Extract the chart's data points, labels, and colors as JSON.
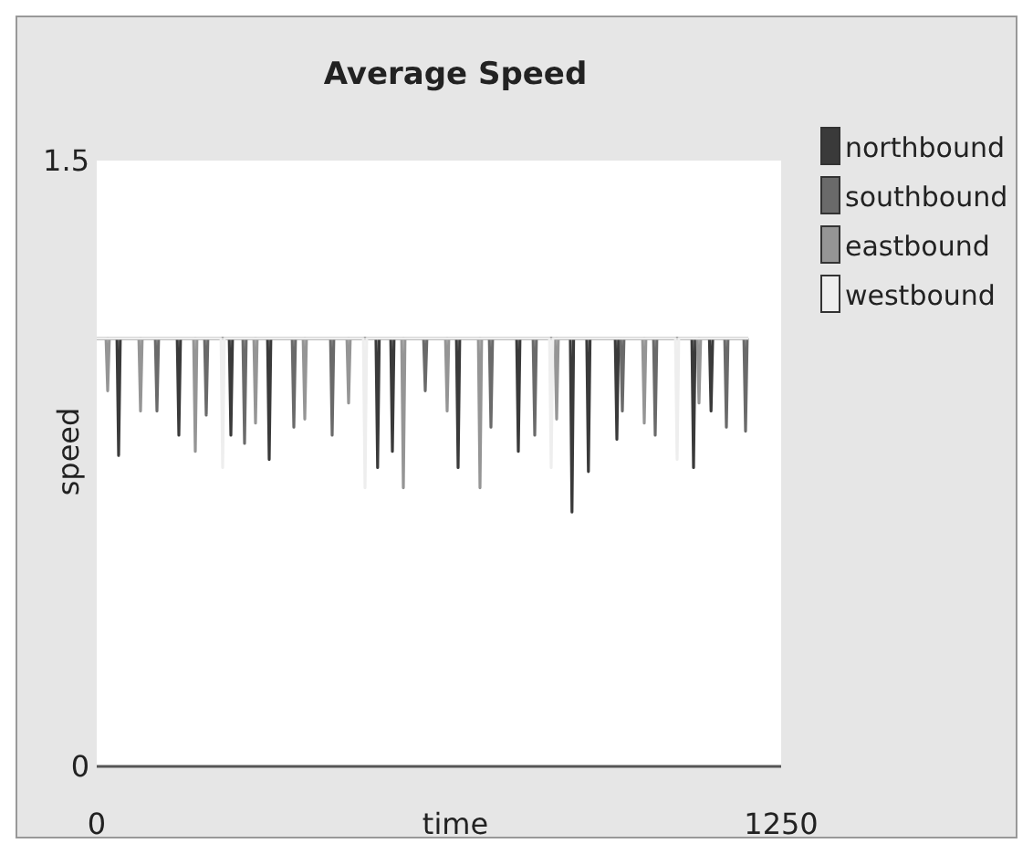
{
  "chart_data": {
    "type": "line",
    "title": "Average Speed",
    "xlabel": "time",
    "ylabel": "speed",
    "xlim": [
      0,
      1250
    ],
    "xticks": [
      0,
      1250
    ],
    "ylim": [
      0,
      1.5
    ],
    "yticks": [
      0,
      1.5
    ],
    "legend": "right",
    "grid": false,
    "marker": "none",
    "line_style": "solid",
    "series": [
      {
        "name": "northbound",
        "color": "#3a3a3a",
        "x": [
          0,
          37,
          40,
          43,
          147,
          150,
          153,
          242,
          245,
          248,
          312,
          315,
          318,
          510,
          513,
          516,
          537,
          540,
          543,
          657,
          660,
          663,
          767,
          770,
          773,
          865,
          868,
          871,
          895,
          898,
          901,
          947,
          950,
          953,
          1087,
          1090,
          1093,
          1119,
          1122,
          1125,
          1190
        ],
        "values": [
          1.06,
          1.06,
          0.77,
          1.06,
          1.06,
          0.82,
          1.06,
          1.06,
          0.82,
          1.06,
          1.06,
          0.76,
          1.06,
          1.06,
          0.74,
          1.06,
          1.06,
          0.78,
          1.06,
          1.06,
          0.74,
          1.06,
          1.06,
          0.78,
          1.06,
          1.06,
          0.63,
          1.06,
          1.06,
          0.73,
          1.06,
          1.06,
          0.81,
          1.06,
          1.06,
          0.74,
          1.06,
          1.06,
          0.88,
          1.06,
          1.06
        ]
      },
      {
        "name": "southbound",
        "color": "#6a6a6a",
        "x": [
          0,
          107,
          110,
          113,
          197,
          200,
          203,
          267,
          270,
          273,
          357,
          360,
          363,
          427,
          430,
          433,
          597,
          600,
          603,
          717,
          720,
          723,
          797,
          800,
          803,
          957,
          960,
          963,
          1017,
          1020,
          1023,
          1147,
          1150,
          1153,
          1182,
          1185,
          1188,
          1190
        ],
        "values": [
          1.06,
          1.06,
          0.88,
          1.06,
          1.06,
          0.87,
          1.06,
          1.06,
          0.8,
          1.06,
          1.06,
          0.84,
          1.06,
          1.06,
          0.82,
          1.06,
          1.06,
          0.93,
          1.06,
          1.06,
          0.84,
          1.06,
          1.06,
          0.82,
          1.06,
          1.06,
          0.88,
          1.06,
          1.06,
          0.82,
          1.06,
          1.06,
          0.84,
          1.06,
          1.06,
          0.83,
          1.06,
          1.06
        ]
      },
      {
        "name": "eastbound",
        "color": "#959595",
        "x": [
          0,
          17,
          20,
          23,
          77,
          80,
          83,
          177,
          180,
          183,
          287,
          290,
          293,
          377,
          380,
          383,
          457,
          460,
          463,
          557,
          560,
          563,
          637,
          640,
          643,
          697,
          700,
          703,
          837,
          840,
          843,
          997,
          1000,
          1003,
          1097,
          1100,
          1103,
          1190
        ],
        "values": [
          1.06,
          1.06,
          0.93,
          1.06,
          1.06,
          0.88,
          1.06,
          1.06,
          0.78,
          1.06,
          1.06,
          0.85,
          1.06,
          1.06,
          0.86,
          1.06,
          1.06,
          0.9,
          1.06,
          1.06,
          0.69,
          1.06,
          1.06,
          0.88,
          1.06,
          1.06,
          0.69,
          1.06,
          1.06,
          0.86,
          1.06,
          1.06,
          0.85,
          1.06,
          1.06,
          0.9,
          1.06,
          1.06
        ]
      },
      {
        "name": "westbound",
        "color": "#eeeeee",
        "x": [
          0,
          227,
          230,
          233,
          487,
          490,
          493,
          827,
          830,
          833,
          1057,
          1060,
          1063,
          1190
        ],
        "values": [
          1.06,
          1.06,
          0.74,
          1.06,
          1.06,
          0.69,
          1.06,
          1.06,
          0.74,
          1.06,
          1.06,
          0.76,
          1.06,
          1.06
        ]
      }
    ]
  }
}
